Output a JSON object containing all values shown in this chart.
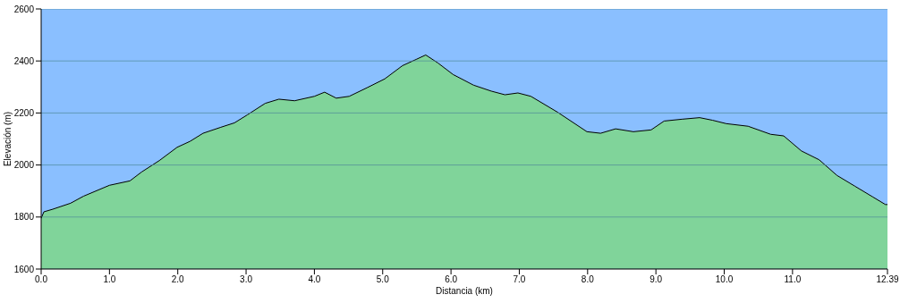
{
  "chart_data": {
    "type": "area",
    "xlabel": "Distancia   (km)",
    "ylabel": "Elevación (m)",
    "x": [
      0,
      0.04,
      0.17,
      0.43,
      0.62,
      1.0,
      1.3,
      1.47,
      1.73,
      1.99,
      2.18,
      2.37,
      2.63,
      2.83,
      3.02,
      3.28,
      3.48,
      3.71,
      4.0,
      4.15,
      4.32,
      4.51,
      4.77,
      5.03,
      5.29,
      5.49,
      5.63,
      5.81,
      6.03,
      6.33,
      6.59,
      6.79,
      6.98,
      7.17,
      7.56,
      7.99,
      8.19,
      8.41,
      8.67,
      8.93,
      9.12,
      9.38,
      9.64,
      9.83,
      10.03,
      10.35,
      10.68,
      10.87,
      11.13,
      11.39,
      11.65,
      11.91,
      12.17,
      12.36,
      12.39
    ],
    "series": [
      {
        "color": "#80d49a",
        "values": [
          1795,
          1820,
          1830,
          1853,
          1880,
          1922,
          1939,
          1973,
          2017,
          2068,
          2091,
          2122,
          2145,
          2162,
          2193,
          2237,
          2253,
          2247,
          2264,
          2280,
          2257,
          2264,
          2297,
          2331,
          2382,
          2406,
          2423,
          2392,
          2348,
          2307,
          2284,
          2270,
          2277,
          2264,
          2203,
          2128,
          2122,
          2139,
          2128,
          2135,
          2169,
          2176,
          2182,
          2172,
          2159,
          2149,
          2118,
          2112,
          2054,
          2020,
          1960,
          1919,
          1878,
          1848,
          1848
        ]
      }
    ],
    "xlim": [
      0,
      12.39
    ],
    "xticks": [
      {
        "value": 0,
        "label": "0.0"
      },
      {
        "value": 1,
        "label": "1.0"
      },
      {
        "value": 2,
        "label": "2.0"
      },
      {
        "value": 3,
        "label": "3.0"
      },
      {
        "value": 4,
        "label": "4.0"
      },
      {
        "value": 5,
        "label": "5.0"
      },
      {
        "value": 6,
        "label": "6.0"
      },
      {
        "value": 7,
        "label": "7.0"
      },
      {
        "value": 8,
        "label": "8.0"
      },
      {
        "value": 9,
        "label": "9.0"
      },
      {
        "value": 10,
        "label": "10.0"
      },
      {
        "value": 11,
        "label": "11.0"
      },
      12.39
    ],
    "ylim": [
      1600,
      2600
    ],
    "yticks": [
      1600,
      1800,
      2000,
      2200,
      2400,
      2600
    ],
    "grid": "y",
    "legend": false,
    "bands": [
      {
        "axis": "y",
        "from": 1600,
        "to": 2600,
        "color": "#8abfff"
      }
    ]
  }
}
